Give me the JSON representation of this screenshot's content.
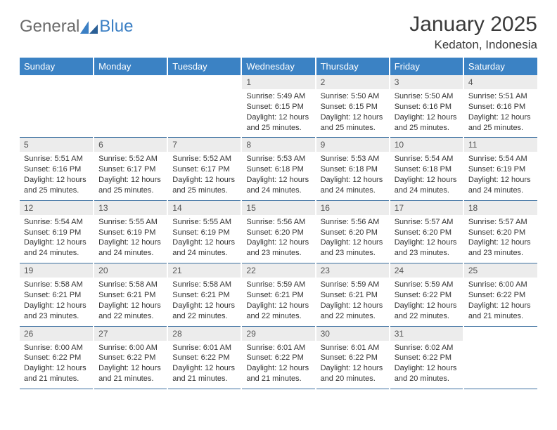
{
  "brand": {
    "general": "General",
    "blue": "Blue"
  },
  "title": "January 2025",
  "location": "Kedaton, Indonesia",
  "colors": {
    "header_bg": "#3b82c4",
    "header_text": "#ffffff",
    "daynum_bg": "#ececec",
    "row_border": "#3b6fa0",
    "logo_gray": "#6b6b6b",
    "logo_blue": "#3b7fc4"
  },
  "dayNames": [
    "Sunday",
    "Monday",
    "Tuesday",
    "Wednesday",
    "Thursday",
    "Friday",
    "Saturday"
  ],
  "weeks": [
    [
      null,
      null,
      null,
      {
        "n": "1",
        "sr": "5:49 AM",
        "ss": "6:15 PM",
        "dl": "12 hours and 25 minutes."
      },
      {
        "n": "2",
        "sr": "5:50 AM",
        "ss": "6:15 PM",
        "dl": "12 hours and 25 minutes."
      },
      {
        "n": "3",
        "sr": "5:50 AM",
        "ss": "6:16 PM",
        "dl": "12 hours and 25 minutes."
      },
      {
        "n": "4",
        "sr": "5:51 AM",
        "ss": "6:16 PM",
        "dl": "12 hours and 25 minutes."
      }
    ],
    [
      {
        "n": "5",
        "sr": "5:51 AM",
        "ss": "6:16 PM",
        "dl": "12 hours and 25 minutes."
      },
      {
        "n": "6",
        "sr": "5:52 AM",
        "ss": "6:17 PM",
        "dl": "12 hours and 25 minutes."
      },
      {
        "n": "7",
        "sr": "5:52 AM",
        "ss": "6:17 PM",
        "dl": "12 hours and 25 minutes."
      },
      {
        "n": "8",
        "sr": "5:53 AM",
        "ss": "6:18 PM",
        "dl": "12 hours and 24 minutes."
      },
      {
        "n": "9",
        "sr": "5:53 AM",
        "ss": "6:18 PM",
        "dl": "12 hours and 24 minutes."
      },
      {
        "n": "10",
        "sr": "5:54 AM",
        "ss": "6:18 PM",
        "dl": "12 hours and 24 minutes."
      },
      {
        "n": "11",
        "sr": "5:54 AM",
        "ss": "6:19 PM",
        "dl": "12 hours and 24 minutes."
      }
    ],
    [
      {
        "n": "12",
        "sr": "5:54 AM",
        "ss": "6:19 PM",
        "dl": "12 hours and 24 minutes."
      },
      {
        "n": "13",
        "sr": "5:55 AM",
        "ss": "6:19 PM",
        "dl": "12 hours and 24 minutes."
      },
      {
        "n": "14",
        "sr": "5:55 AM",
        "ss": "6:19 PM",
        "dl": "12 hours and 24 minutes."
      },
      {
        "n": "15",
        "sr": "5:56 AM",
        "ss": "6:20 PM",
        "dl": "12 hours and 23 minutes."
      },
      {
        "n": "16",
        "sr": "5:56 AM",
        "ss": "6:20 PM",
        "dl": "12 hours and 23 minutes."
      },
      {
        "n": "17",
        "sr": "5:57 AM",
        "ss": "6:20 PM",
        "dl": "12 hours and 23 minutes."
      },
      {
        "n": "18",
        "sr": "5:57 AM",
        "ss": "6:20 PM",
        "dl": "12 hours and 23 minutes."
      }
    ],
    [
      {
        "n": "19",
        "sr": "5:58 AM",
        "ss": "6:21 PM",
        "dl": "12 hours and 23 minutes."
      },
      {
        "n": "20",
        "sr": "5:58 AM",
        "ss": "6:21 PM",
        "dl": "12 hours and 22 minutes."
      },
      {
        "n": "21",
        "sr": "5:58 AM",
        "ss": "6:21 PM",
        "dl": "12 hours and 22 minutes."
      },
      {
        "n": "22",
        "sr": "5:59 AM",
        "ss": "6:21 PM",
        "dl": "12 hours and 22 minutes."
      },
      {
        "n": "23",
        "sr": "5:59 AM",
        "ss": "6:21 PM",
        "dl": "12 hours and 22 minutes."
      },
      {
        "n": "24",
        "sr": "5:59 AM",
        "ss": "6:22 PM",
        "dl": "12 hours and 22 minutes."
      },
      {
        "n": "25",
        "sr": "6:00 AM",
        "ss": "6:22 PM",
        "dl": "12 hours and 21 minutes."
      }
    ],
    [
      {
        "n": "26",
        "sr": "6:00 AM",
        "ss": "6:22 PM",
        "dl": "12 hours and 21 minutes."
      },
      {
        "n": "27",
        "sr": "6:00 AM",
        "ss": "6:22 PM",
        "dl": "12 hours and 21 minutes."
      },
      {
        "n": "28",
        "sr": "6:01 AM",
        "ss": "6:22 PM",
        "dl": "12 hours and 21 minutes."
      },
      {
        "n": "29",
        "sr": "6:01 AM",
        "ss": "6:22 PM",
        "dl": "12 hours and 21 minutes."
      },
      {
        "n": "30",
        "sr": "6:01 AM",
        "ss": "6:22 PM",
        "dl": "12 hours and 20 minutes."
      },
      {
        "n": "31",
        "sr": "6:02 AM",
        "ss": "6:22 PM",
        "dl": "12 hours and 20 minutes."
      },
      null
    ]
  ],
  "labels": {
    "sunrise": "Sunrise:",
    "sunset": "Sunset:",
    "daylight": "Daylight:"
  }
}
